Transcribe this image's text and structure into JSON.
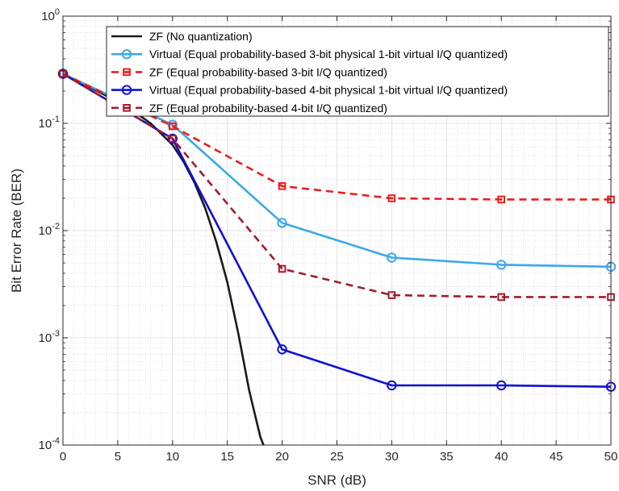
{
  "chart_data": {
    "type": "line",
    "title": "",
    "xlabel": "SNR (dB)",
    "ylabel": "Bit Error Rate (BER)",
    "xlim": [
      0,
      50
    ],
    "ylim": [
      0.0001,
      1
    ],
    "yscale": "log",
    "grid": true,
    "minor_grid": true,
    "legend_position": "top-right",
    "x_ticks": [
      "0",
      "5",
      "10",
      "15",
      "20",
      "25",
      "30",
      "35",
      "40",
      "45",
      "50"
    ],
    "y_ticks": [
      {
        "value": 1,
        "mantissa": "10",
        "exp": "0"
      },
      {
        "value": 0.1,
        "mantissa": "10",
        "exp": "-1"
      },
      {
        "value": 0.01,
        "mantissa": "10",
        "exp": "-2"
      },
      {
        "value": 0.001,
        "mantissa": "10",
        "exp": "-3"
      },
      {
        "value": 0.0001,
        "mantissa": "10",
        "exp": "-4"
      }
    ],
    "series": [
      {
        "name": "ZF (No quantization)",
        "color": "#1a1a1a",
        "dash": "solid",
        "marker": "none",
        "x": [
          0,
          2,
          4,
          6,
          8,
          10,
          11,
          12,
          13,
          14,
          15,
          16,
          17,
          18,
          18.3
        ],
        "y": [
          0.29,
          0.23,
          0.18,
          0.14,
          0.1,
          0.063,
          0.044,
          0.028,
          0.016,
          0.0078,
          0.0033,
          0.0011,
          0.00032,
          0.00012,
          0.0001
        ]
      },
      {
        "name": "Virtual (Equal probability-based 3-bit physical 1-bit virtual  I/Q quantized)",
        "color": "#3aa8ec",
        "dash": "solid",
        "marker": "circle",
        "x": [
          0,
          10,
          20,
          30,
          40,
          50
        ],
        "y": [
          0.29,
          0.097,
          0.0118,
          0.0056,
          0.0048,
          0.0046
        ]
      },
      {
        "name": "ZF (Equal probability-based 3-bit I/Q quantized)",
        "color": "#ee1c1c",
        "dash": "dashed",
        "marker": "square",
        "x": [
          0,
          10,
          20,
          30,
          40,
          50
        ],
        "y": [
          0.29,
          0.094,
          0.026,
          0.02,
          0.0195,
          0.0195
        ]
      },
      {
        "name": "Virtual (Equal probability-based 4-bit physical 1-bit virtual  I/Q quantized)",
        "color": "#1010d6",
        "dash": "solid",
        "marker": "circle",
        "x": [
          0,
          10,
          20,
          30,
          40,
          50
        ],
        "y": [
          0.29,
          0.072,
          0.00078,
          0.00036,
          0.00036,
          0.00035
        ]
      },
      {
        "name": "ZF (Equal probability-based 4-bit I/Q quantized)",
        "color": "#a01c2e",
        "dash": "dashed",
        "marker": "square",
        "x": [
          0,
          10,
          20,
          30,
          40,
          50
        ],
        "y": [
          0.29,
          0.072,
          0.0044,
          0.0025,
          0.0024,
          0.0024
        ]
      }
    ]
  }
}
